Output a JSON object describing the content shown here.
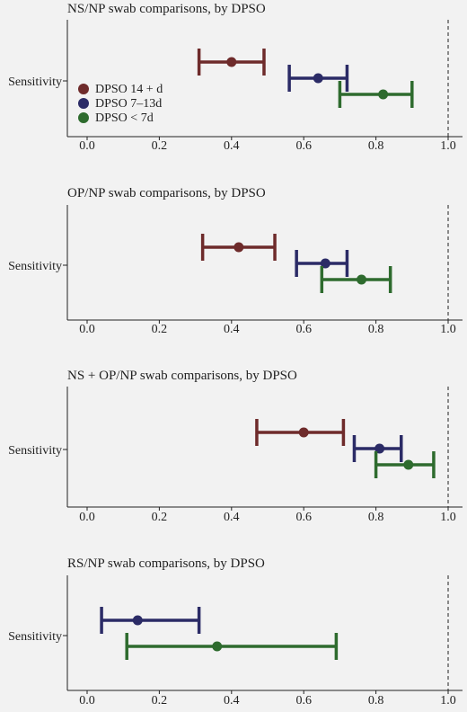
{
  "colors": {
    "background": "#f2f2f2",
    "axis": "#222222",
    "reference_line": "#222222",
    "DPSO 14 + d": "#6e2b2b",
    "DPSO 7–13d": "#2b2b66",
    "DPSO < 7d": "#2e6b2e"
  },
  "chart_data": [
    {
      "type": "scatter",
      "subtype": "forest-plot-with-error-bars",
      "title": "NS/NP swab comparisons, by DPSO",
      "ylabel": "Sensitivity",
      "xlim": [
        -0.05,
        1.05
      ],
      "xticks": [
        "0.0",
        "0.2",
        "0.4",
        "0.6",
        "0.8",
        "1.0"
      ],
      "reference_line_x": 1.0,
      "legend": {
        "placement": "left",
        "entries": [
          "DPSO 14 + d",
          "DPSO 7–13d",
          "DPSO < 7d"
        ]
      },
      "series": [
        {
          "name": "DPSO 14 + d",
          "estimate": 0.4,
          "lower": 0.31,
          "upper": 0.49
        },
        {
          "name": "DPSO 7–13d",
          "estimate": 0.64,
          "lower": 0.56,
          "upper": 0.72
        },
        {
          "name": "DPSO < 7d",
          "estimate": 0.82,
          "lower": 0.7,
          "upper": 0.9
        }
      ]
    },
    {
      "type": "scatter",
      "subtype": "forest-plot-with-error-bars",
      "title": "OP/NP swab comparisons, by DPSO",
      "ylabel": "Sensitivity",
      "xlim": [
        -0.05,
        1.05
      ],
      "xticks": [
        "0.0",
        "0.2",
        "0.4",
        "0.6",
        "0.8",
        "1.0"
      ],
      "reference_line_x": 1.0,
      "series": [
        {
          "name": "DPSO 14 + d",
          "estimate": 0.42,
          "lower": 0.32,
          "upper": 0.52
        },
        {
          "name": "DPSO 7–13d",
          "estimate": 0.66,
          "lower": 0.58,
          "upper": 0.72
        },
        {
          "name": "DPSO < 7d",
          "estimate": 0.76,
          "lower": 0.65,
          "upper": 0.84
        }
      ]
    },
    {
      "type": "scatter",
      "subtype": "forest-plot-with-error-bars",
      "title": "NS + OP/NP swab comparisons, by DPSO",
      "ylabel": "Sensitivity",
      "xlim": [
        -0.05,
        1.05
      ],
      "xticks": [
        "0.0",
        "0.2",
        "0.4",
        "0.6",
        "0.8",
        "1.0"
      ],
      "reference_line_x": 1.0,
      "series": [
        {
          "name": "DPSO 14 + d",
          "estimate": 0.6,
          "lower": 0.47,
          "upper": 0.71
        },
        {
          "name": "DPSO 7–13d",
          "estimate": 0.81,
          "lower": 0.74,
          "upper": 0.87
        },
        {
          "name": "DPSO < 7d",
          "estimate": 0.89,
          "lower": 0.8,
          "upper": 0.96
        }
      ]
    },
    {
      "type": "scatter",
      "subtype": "forest-plot-with-error-bars",
      "title": "RS/NP swab comparisons, by DPSO",
      "ylabel": "Sensitivity",
      "xlim": [
        -0.05,
        1.05
      ],
      "xticks": [
        "0.0",
        "0.2",
        "0.4",
        "0.6",
        "0.8",
        "1.0"
      ],
      "reference_line_x": 1.0,
      "series": [
        {
          "name": "DPSO 7–13d",
          "estimate": 0.14,
          "lower": 0.04,
          "upper": 0.31
        },
        {
          "name": "DPSO < 7d",
          "estimate": 0.36,
          "lower": 0.11,
          "upper": 0.69
        }
      ]
    }
  ]
}
